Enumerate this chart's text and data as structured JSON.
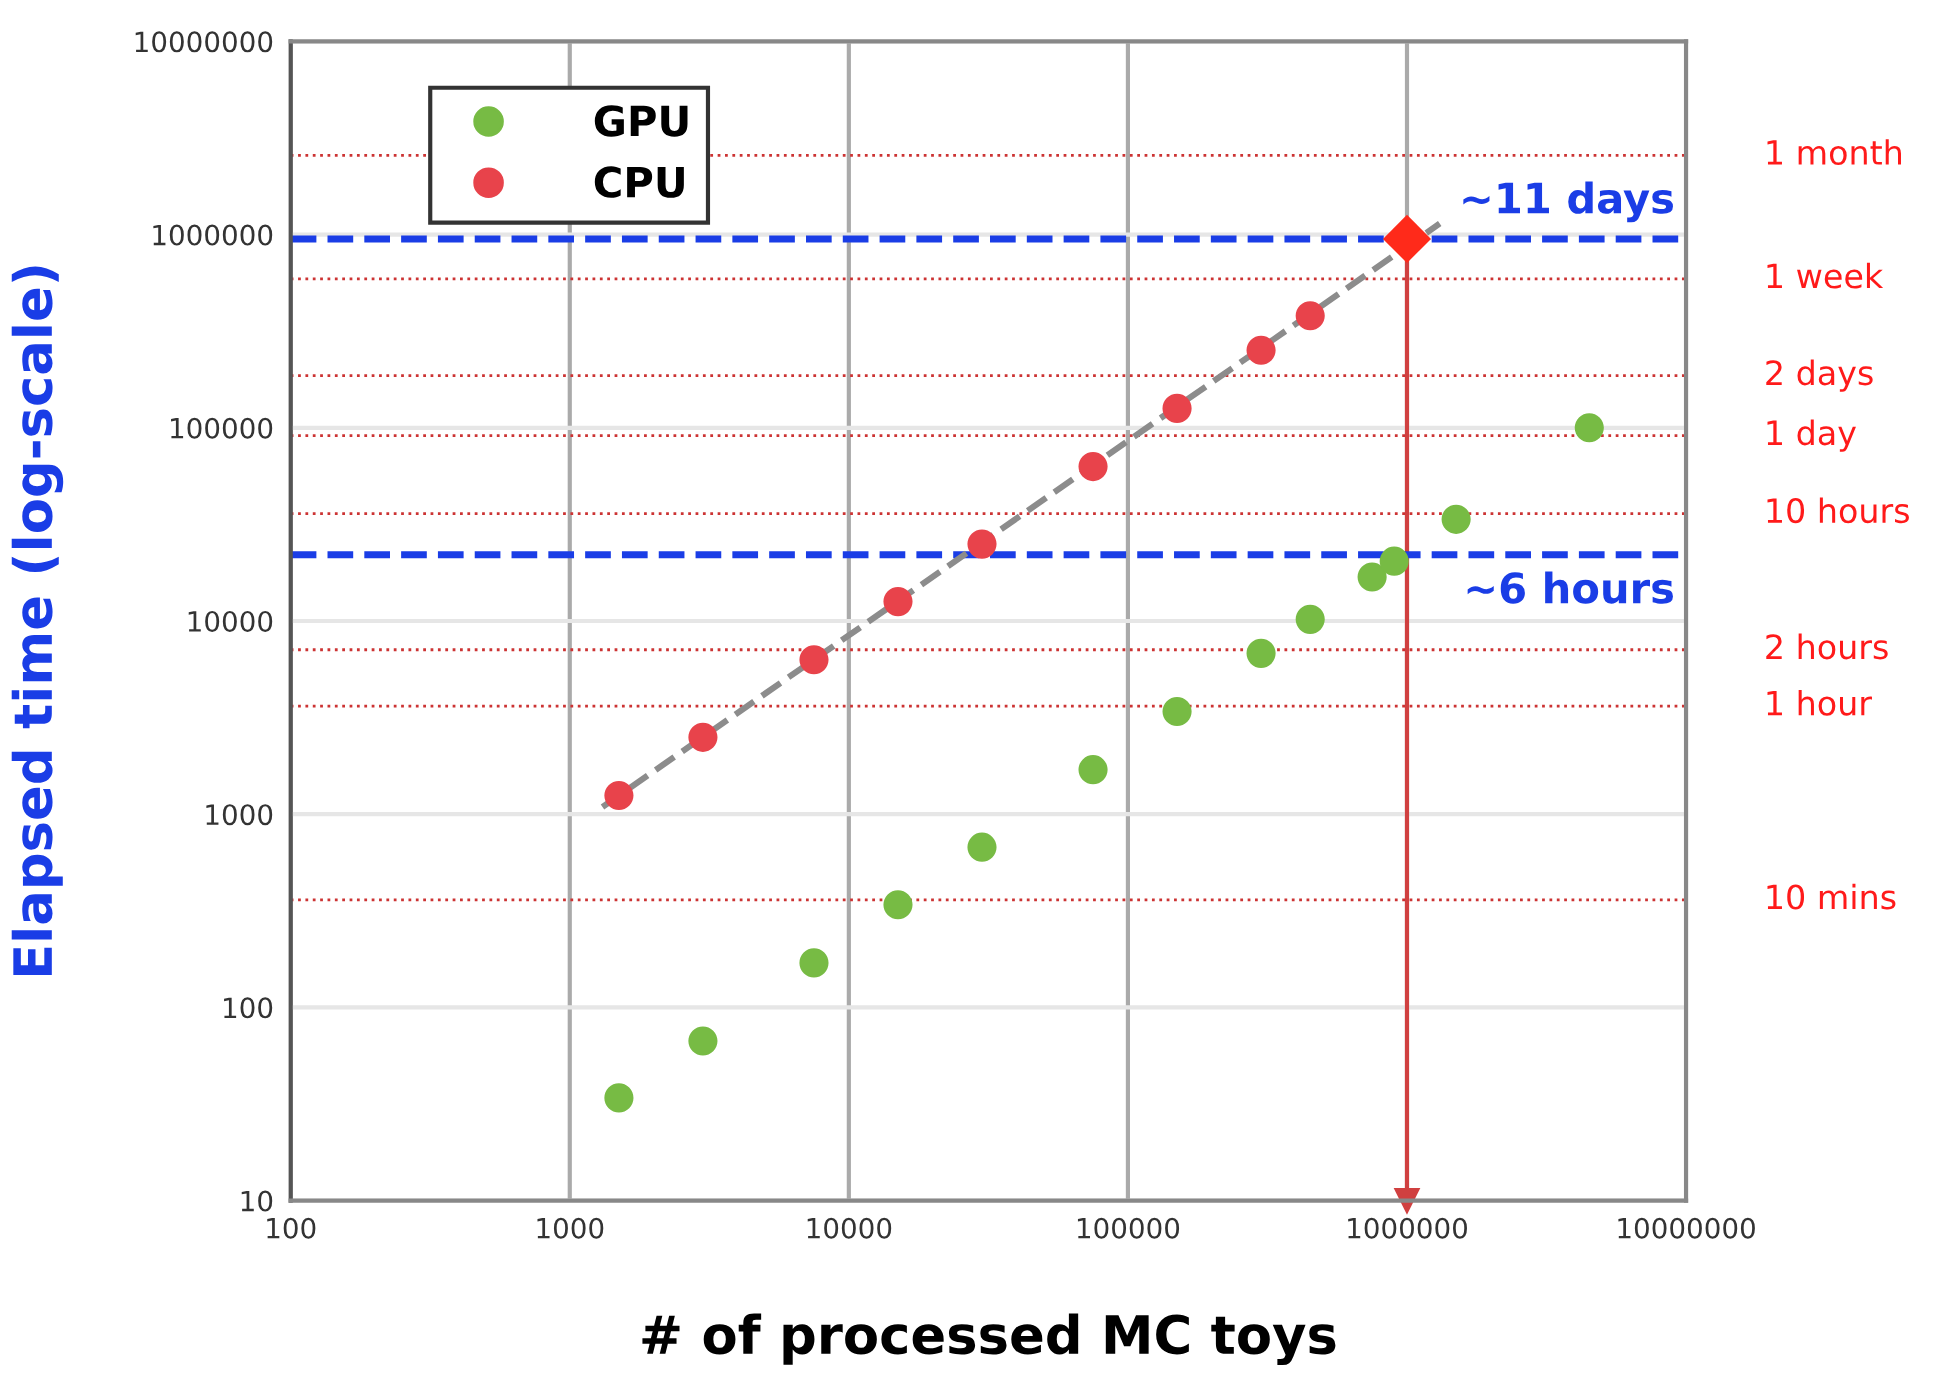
{
  "chart_data": {
    "type": "scatter",
    "xlabel": "# of processed MC toys",
    "ylabel": "Elapsed time (log-scale)",
    "log": "xy",
    "xlim": [
      100,
      10000000
    ],
    "xticks": [
      100,
      1000,
      10000,
      100000,
      1000000,
      10000000
    ],
    "ylim": [
      10,
      10000000
    ],
    "yticks": [
      10,
      100,
      1000,
      10000,
      100000,
      1000000,
      10000000
    ],
    "grid": true,
    "legend": "top left",
    "marker": "circle",
    "series": [
      {
        "name": "GPU",
        "color": "#77bb44",
        "x": [
          1500,
          3000,
          7500,
          15000,
          30000,
          75000,
          150000,
          300000,
          450000,
          750000,
          900000,
          1500000,
          4500000
        ],
        "values": [
          34,
          67,
          170,
          340,
          675,
          1700,
          3400,
          6800,
          10200,
          16900,
          20400,
          33600,
          100000
        ]
      },
      {
        "name": "CPU",
        "color": "#e8434b",
        "x": [
          1500,
          3000,
          7500,
          15000,
          30000,
          75000,
          150000,
          300000,
          450000
        ],
        "values": [
          1250,
          2500,
          6300,
          12600,
          25000,
          63000,
          126000,
          252000,
          380000
        ]
      },
      {
        "type": "line",
        "color": "#8c8c8c",
        "line_style": "dashed",
        "marker": "none",
        "x": [
          1310,
          1310000
        ],
        "values": [
          1090,
          1140000
        ]
      },
      {
        "color": "#ff2a1a",
        "marker": "diamond",
        "x": [
          1000000
        ],
        "values": [
          950000
        ]
      }
    ],
    "ref_lines": [
      {
        "axis": "y",
        "value": 2570000,
        "label": "1 month",
        "color": "#cc3333",
        "line_style": "dotted"
      },
      {
        "axis": "y",
        "value": 590000,
        "label": "1 week",
        "color": "#cc3333",
        "line_style": "dotted"
      },
      {
        "axis": "y",
        "value": 186000,
        "label": "2 days",
        "color": "#cc3333",
        "line_style": "dotted"
      },
      {
        "axis": "y",
        "value": 91000,
        "label": "1 day",
        "color": "#cc3333",
        "line_style": "dotted"
      },
      {
        "axis": "y",
        "value": 36000,
        "label": "10 hours",
        "color": "#cc3333",
        "line_style": "dotted"
      },
      {
        "axis": "y",
        "value": 7100,
        "label": "2 hours",
        "color": "#cc3333",
        "line_style": "dotted"
      },
      {
        "axis": "y",
        "value": 3630,
        "label": "1 hour",
        "color": "#cc3333",
        "line_style": "dotted"
      },
      {
        "axis": "y",
        "value": 360,
        "label": "10 mins",
        "color": "#cc3333",
        "line_style": "dotted"
      },
      {
        "axis": "y",
        "value": 950000,
        "label": "~11 days",
        "color": "#1a3de6",
        "line_style": "dashed"
      },
      {
        "axis": "y",
        "value": 22000,
        "label": "~6 hours",
        "color": "#1a3de6",
        "line_style": "dashed"
      },
      {
        "axis": "x",
        "value": 1000000,
        "color": "#d04040",
        "line_style": "solid"
      }
    ]
  }
}
